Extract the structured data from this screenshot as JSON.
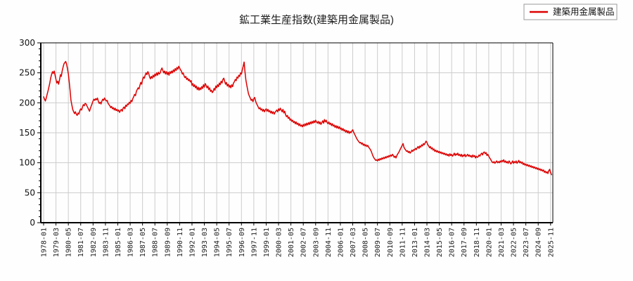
{
  "title": "鉱工業生産指数(建築用金属製品)",
  "legend": {
    "label": "建築用金属製品",
    "line_color": "#dd0000",
    "box_border": "#999999"
  },
  "colors": {
    "line": "#dd0000",
    "grid": "#cccccc",
    "axis": "#000000",
    "background": "#fefefe"
  },
  "chart_data": {
    "type": "line",
    "title": "鉱工業生産指数(建築用金属製品)",
    "series_name": "建築用金属製品",
    "x_start": "1978-01",
    "x_interval_months": 1,
    "x_tick_every_months": 14,
    "x_tick_labels": [
      "1978-01",
      "1979-03",
      "1980-05",
      "1981-07",
      "1982-09",
      "1983-11",
      "1985-01",
      "1986-03",
      "1987-05",
      "1988-07",
      "1989-09",
      "1990-11",
      "1992-01",
      "1993-03",
      "1994-05",
      "1995-07",
      "1996-09",
      "1997-11",
      "1999-01",
      "2000-03",
      "2001-05",
      "2002-07",
      "2003-09",
      "2004-11",
      "2006-01",
      "2007-03",
      "2008-05",
      "2009-07",
      "2010-09",
      "2011-11",
      "2013-01",
      "2014-03",
      "2015-05",
      "2016-07",
      "2017-09",
      "2018-11",
      "2020-01",
      "2021-03",
      "2022-05",
      "2023-07",
      "2024-09",
      "2025-11"
    ],
    "ylim": [
      0,
      300
    ],
    "y_ticks": [
      0,
      50,
      100,
      150,
      200,
      250,
      300
    ],
    "y_minor_step": 10,
    "grid": true,
    "legend_position": "top-right",
    "line_color": "#dd0000",
    "values": [
      210,
      206,
      203,
      208,
      214,
      220,
      226,
      233,
      241,
      247,
      252,
      249,
      253,
      246,
      239,
      233,
      236,
      231,
      238,
      247,
      244,
      253,
      259,
      265,
      267,
      269,
      265,
      257,
      248,
      235,
      220,
      204,
      196,
      189,
      185,
      182,
      185,
      181,
      179,
      183,
      181,
      187,
      190,
      188,
      193,
      197,
      195,
      199,
      198,
      195,
      192,
      189,
      186,
      191,
      195,
      199,
      203,
      206,
      204,
      207,
      205,
      208,
      202,
      199,
      201,
      198,
      203,
      206,
      204,
      208,
      205,
      203,
      204,
      199,
      197,
      195,
      192,
      194,
      190,
      192,
      188,
      191,
      187,
      189,
      186,
      188,
      184,
      187,
      189,
      186,
      191,
      193,
      190,
      196,
      194,
      198,
      197,
      201,
      199,
      204,
      202,
      207,
      210,
      214,
      212,
      219,
      222,
      225,
      223,
      229,
      234,
      231,
      238,
      243,
      241,
      246,
      250,
      247,
      252,
      249,
      243,
      240,
      244,
      241,
      246,
      243,
      248,
      245,
      250,
      246,
      251,
      248,
      250,
      255,
      258,
      254,
      250,
      253,
      248,
      252,
      247,
      251,
      246,
      252,
      249,
      253,
      250,
      255,
      252,
      257,
      254,
      259,
      256,
      261,
      258,
      255,
      253,
      248,
      250,
      245,
      242,
      244,
      239,
      241,
      237,
      239,
      235,
      237,
      229,
      232,
      227,
      230,
      225,
      228,
      222,
      226,
      221,
      225,
      222,
      227,
      224,
      230,
      226,
      232,
      229,
      225,
      228,
      222,
      225,
      219,
      221,
      217,
      219,
      224,
      221,
      228,
      225,
      230,
      227,
      233,
      230,
      236,
      233,
      239,
      241,
      236,
      231,
      234,
      228,
      231,
      226,
      229,
      225,
      230,
      227,
      233,
      235,
      239,
      237,
      243,
      241,
      246,
      244,
      250,
      248,
      255,
      261,
      268,
      252,
      238,
      230,
      222,
      215,
      211,
      208,
      204,
      206,
      202,
      207,
      209,
      203,
      199,
      196,
      193,
      190,
      192,
      188,
      190,
      186,
      189,
      185,
      188,
      190,
      186,
      189,
      185,
      187,
      183,
      186,
      182,
      185,
      181,
      184,
      186,
      188,
      185,
      190,
      187,
      191,
      188,
      185,
      189,
      183,
      186,
      180,
      177,
      179,
      174,
      176,
      171,
      173,
      169,
      171,
      167,
      169,
      165,
      168,
      164,
      166,
      162,
      165,
      161,
      163,
      160,
      164,
      161,
      165,
      162,
      166,
      163,
      167,
      164,
      168,
      165,
      169,
      166,
      170,
      167,
      171,
      168,
      166,
      169,
      165,
      168,
      164,
      167,
      170,
      166,
      172,
      168,
      171,
      167,
      165,
      168,
      164,
      166,
      162,
      165,
      161,
      163,
      159,
      162,
      158,
      161,
      157,
      160,
      156,
      158,
      154,
      157,
      153,
      155,
      151,
      154,
      150,
      153,
      149,
      152,
      150,
      153,
      155,
      151,
      148,
      145,
      142,
      139,
      137,
      135,
      133,
      134,
      131,
      133,
      129,
      131,
      128,
      130,
      127,
      129,
      126,
      124,
      122,
      119,
      115,
      111,
      108,
      106,
      104,
      105,
      103,
      106,
      104,
      107,
      105,
      108,
      106,
      109,
      107,
      110,
      108,
      111,
      109,
      112,
      110,
      113,
      111,
      114,
      112,
      109,
      111,
      108,
      112,
      115,
      117,
      120,
      123,
      126,
      129,
      132,
      126,
      123,
      121,
      119,
      120,
      117,
      119,
      116,
      118,
      121,
      119,
      122,
      121,
      124,
      122,
      125,
      127,
      124,
      128,
      126,
      130,
      128,
      132,
      130,
      133,
      136,
      134,
      130,
      128,
      125,
      127,
      123,
      125,
      121,
      123,
      119,
      121,
      118,
      120,
      117,
      119,
      116,
      118,
      115,
      117,
      114,
      116,
      113,
      115,
      112,
      114,
      111,
      115,
      112,
      114,
      111,
      113,
      116,
      112,
      115,
      113,
      116,
      112,
      114,
      111,
      114,
      110,
      113,
      111,
      114,
      110,
      112,
      114,
      111,
      113,
      110,
      112,
      109,
      113,
      110,
      112,
      108,
      111,
      109,
      110,
      113,
      111,
      114,
      116,
      113,
      117,
      118,
      115,
      117,
      112,
      114,
      111,
      108,
      106,
      103,
      101,
      100,
      102,
      99,
      101,
      103,
      100,
      102,
      100,
      103,
      101,
      104,
      102,
      105,
      101,
      103,
      100,
      102,
      99,
      103,
      101,
      98,
      100,
      103,
      99,
      102,
      100,
      103,
      99,
      101,
      104,
      100,
      102,
      99,
      101,
      97,
      99,
      96,
      98,
      95,
      97,
      94,
      96,
      93,
      95,
      92,
      94,
      91,
      93,
      90,
      92,
      89,
      91,
      88,
      90,
      87,
      89,
      86,
      88,
      84,
      86,
      83,
      85,
      82,
      87,
      89,
      84,
      80
    ]
  }
}
